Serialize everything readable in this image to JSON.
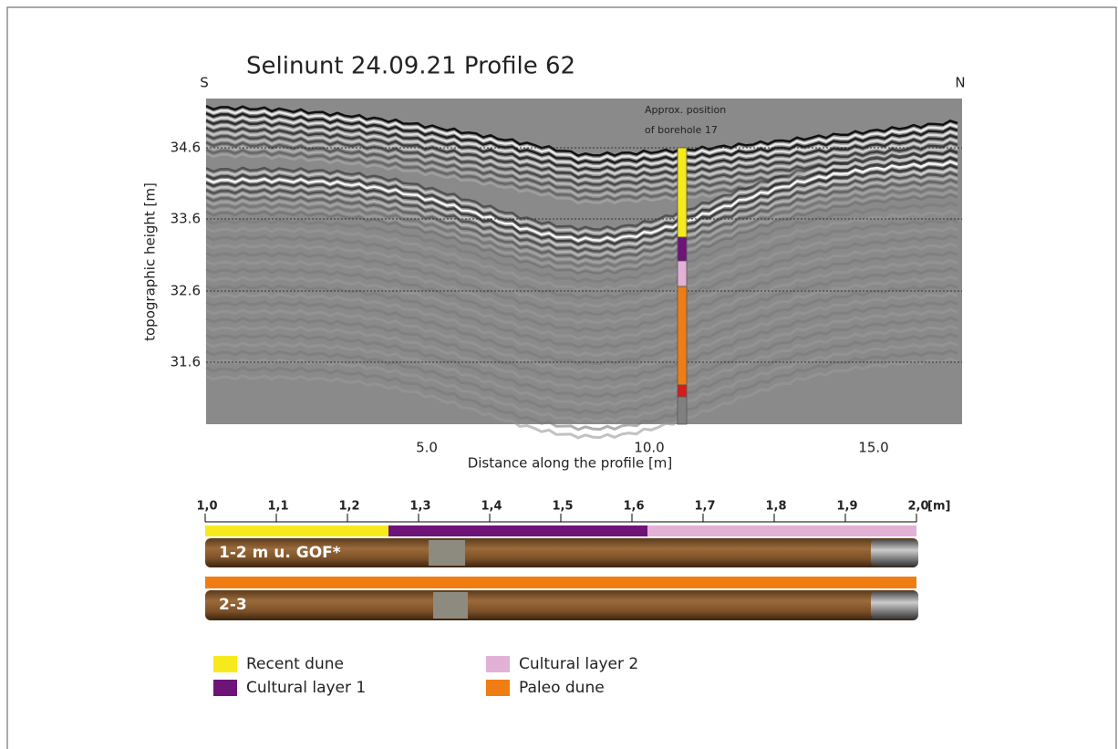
{
  "figure": {
    "title": "Selinunt 24.09.21 Profile 62",
    "direction_start": "S",
    "direction_end": "N",
    "y_axis_label": "topographic height [m]",
    "x_axis_label": "Distance along the profile [m]",
    "y_ticks": [
      "34.6",
      "33.6",
      "32.6",
      "31.6"
    ],
    "x_ticks": [
      "5.0",
      "10.0",
      "15.0"
    ],
    "borehole_note": [
      "Approx. position",
      "of borehole 17"
    ]
  },
  "core": {
    "scale_ticks": [
      "1,0",
      "1,1",
      "1,2",
      "1,3",
      "1,4",
      "1,5",
      "1,6",
      "1,7",
      "1,8",
      "1,9",
      "2,0"
    ],
    "scale_unit": "[m]",
    "core_labels": [
      "1-2 m u. GOF*",
      "2-3"
    ]
  },
  "legend": [
    {
      "label": "Recent dune",
      "color": "#f7ea1c"
    },
    {
      "label": "Cultural layer 1",
      "color": "#6e1478"
    },
    {
      "label": "Cultural layer 2",
      "color": "#e3b1d6"
    },
    {
      "label": "Paleo dune",
      "color": "#f07d14"
    }
  ]
}
